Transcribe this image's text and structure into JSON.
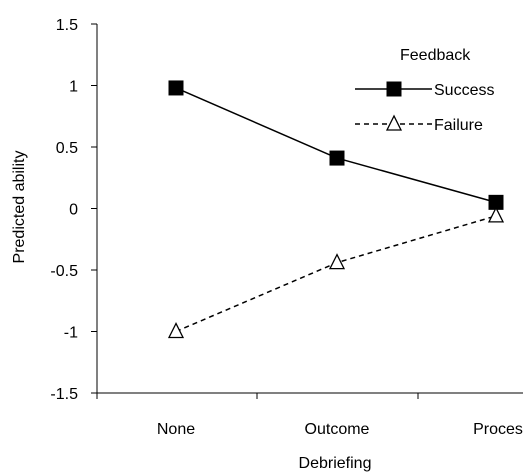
{
  "chart_data": {
    "type": "line",
    "title": "",
    "xlabel": "Debriefing",
    "ylabel": "Predicted ability",
    "categories": [
      "None",
      "Outcome",
      "Proces"
    ],
    "ylim": [
      -1.5,
      1.5
    ],
    "yticks": [
      -1.5,
      -1,
      -0.5,
      0,
      0.5,
      1,
      1.5
    ],
    "ytick_labels": [
      "-1.5",
      "-1",
      "-0.5",
      "0",
      "0.5",
      "1",
      "1.5"
    ],
    "grid": false,
    "legend": {
      "title": "Feedback",
      "position": "top-right"
    },
    "series": [
      {
        "name": "Success",
        "values": [
          0.98,
          0.41,
          0.05
        ],
        "marker": "filled-square",
        "line_style": "solid",
        "color": "#000000"
      },
      {
        "name": "Failure",
        "values": [
          -1.0,
          -0.44,
          -0.06
        ],
        "marker": "open-triangle",
        "line_style": "dashed",
        "color": "#000000"
      }
    ]
  }
}
